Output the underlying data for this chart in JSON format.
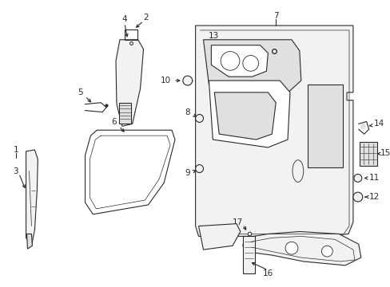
{
  "bg_color": "#ffffff",
  "lc": "#2a2a2a",
  "fc_light": "#f2f2f2",
  "fc_mid": "#e0e0e0",
  "figsize": [
    4.89,
    3.6
  ],
  "dpi": 100
}
